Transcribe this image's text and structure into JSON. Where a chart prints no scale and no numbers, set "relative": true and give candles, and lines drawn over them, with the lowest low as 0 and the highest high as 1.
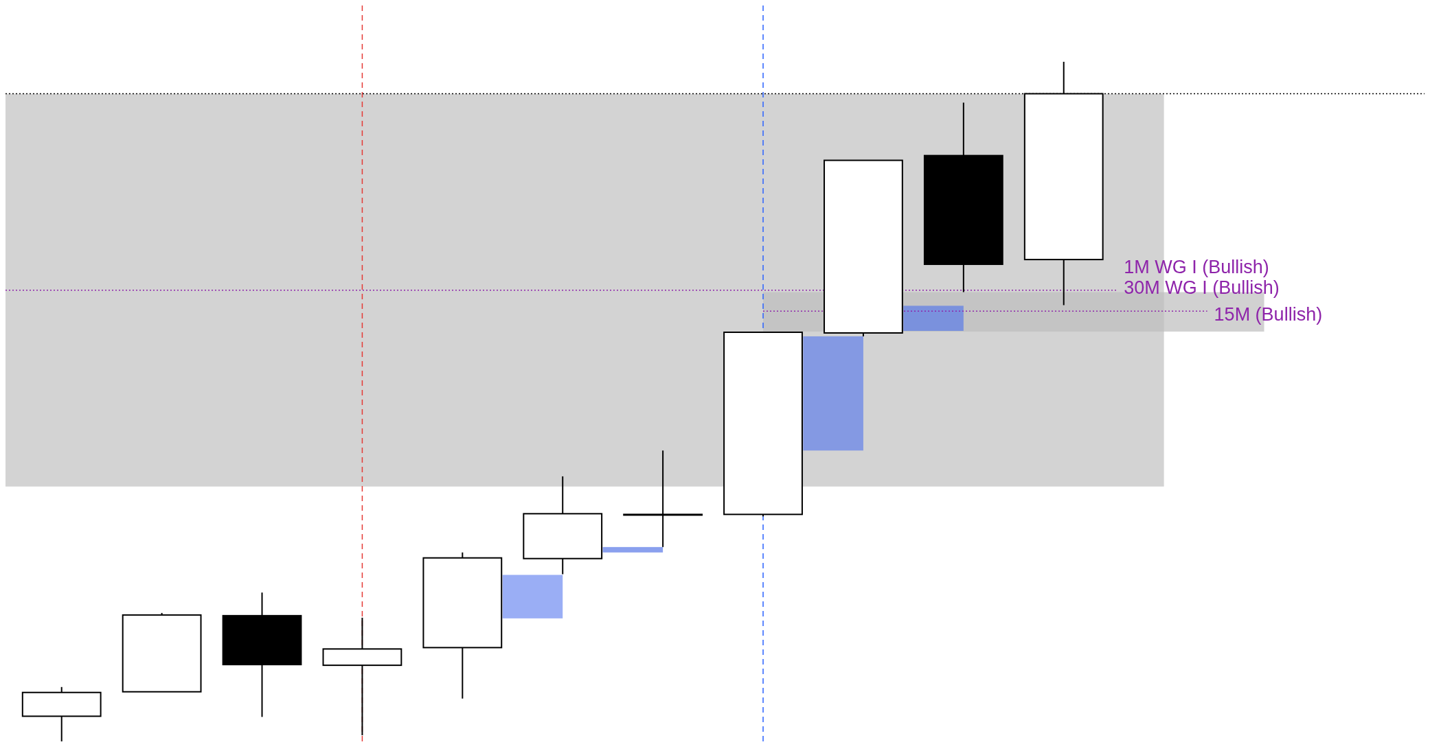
{
  "chart_data": {
    "type": "candlestick",
    "relative": true,
    "categories": [
      null,
      null,
      null,
      null,
      null,
      null,
      null,
      null,
      null,
      null,
      null
    ],
    "ohlc": [
      [
        0.037,
        0.08,
        0,
        0.072
      ],
      [
        0.073,
        0.189,
        0.073,
        0.186
      ],
      [
        0.185,
        0.219,
        0.036,
        0.113
      ],
      [
        0.112,
        0.182,
        0.009,
        0.136
      ],
      [
        0.138,
        0.278,
        0.063,
        0.27
      ],
      [
        0.269,
        0.39,
        0.246,
        0.335
      ],
      [
        0.334,
        0.428,
        0.286,
        0.334
      ],
      [
        0.334,
        0.602,
        0.331,
        0.602
      ],
      [
        0.601,
        0.855,
        0.596,
        0.855
      ],
      [
        0.862,
        0.94,
        0.661,
        0.702
      ],
      [
        0.709,
        1,
        0.642,
        0.953
      ]
    ],
    "ref_lines": [
      {
        "axis": "y",
        "value": 0.953,
        "color": "#000000",
        "line_style": "dotted"
      },
      {
        "axis": "y",
        "value": 0.664,
        "label": "30M WG I (Bullish)",
        "color": "#8e24aa",
        "line_style": "dotted"
      },
      {
        "axis": "y",
        "value": 0.633,
        "label": "15M (Bullish)",
        "color": "#8e24aa",
        "line_style": "dotted"
      }
    ],
    "annotations": [
      "1M WG I (Bullish)"
    ]
  }
}
